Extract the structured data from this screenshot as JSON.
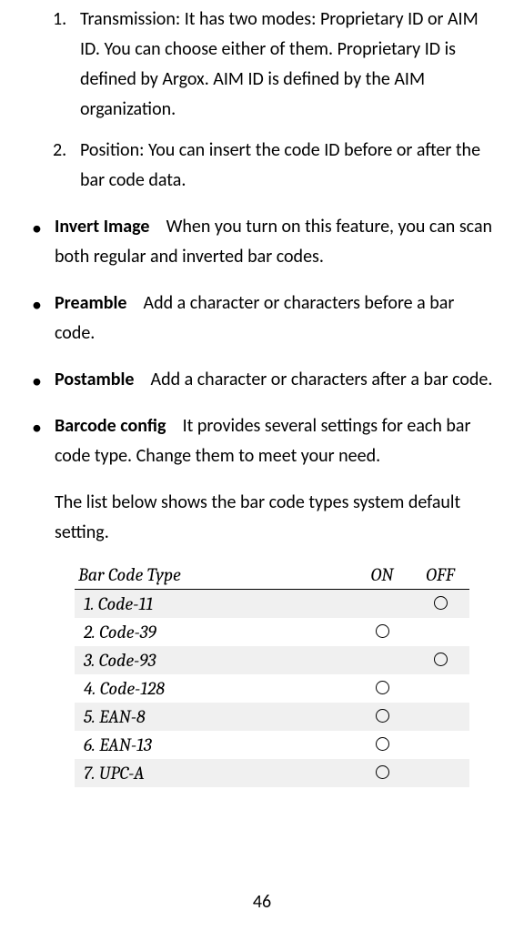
{
  "numberedItems": [
    {
      "num": "1.",
      "text": "Transmission: It has two modes: Proprietary ID or AIM ID. You can choose either of them. Proprietary ID is defined by Argox. AIM ID is defined by the AIM organization."
    },
    {
      "num": "2.",
      "text": "Position: You can insert the code ID before or after the bar code data."
    }
  ],
  "bulletItems": [
    {
      "title": "Invert Image",
      "text": "When you turn on this feature, you can scan both regular and inverted bar codes."
    },
    {
      "title": "Preamble",
      "text": "Add a character or characters before a bar code."
    },
    {
      "title": "Postamble",
      "text": "Add a character or characters after a bar code."
    },
    {
      "title": "Barcode config",
      "text": "It provides several settings for each bar code type. Change them to meet your need."
    }
  ],
  "introText": "The list below shows the bar code types system default setting.",
  "table": {
    "headers": {
      "type": "Bar Code Type",
      "on": "ON",
      "off": "OFF"
    },
    "rows": [
      {
        "type": "1. Code-11",
        "on": false,
        "off": true,
        "shaded": true
      },
      {
        "type": "2. Code-39",
        "on": true,
        "off": false,
        "shaded": false
      },
      {
        "type": "3. Code-93",
        "on": false,
        "off": true,
        "shaded": true
      },
      {
        "type": "4. Code-128",
        "on": true,
        "off": false,
        "shaded": false
      },
      {
        "type": "5. EAN-8",
        "on": true,
        "off": false,
        "shaded": true
      },
      {
        "type": "6. EAN-13",
        "on": true,
        "off": false,
        "shaded": false
      },
      {
        "type": "7. UPC-A",
        "on": true,
        "off": false,
        "shaded": true
      }
    ]
  },
  "pageNum": "46"
}
